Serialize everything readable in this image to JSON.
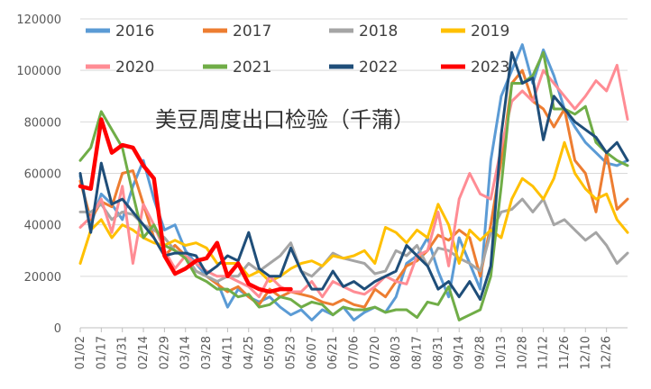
{
  "chart_data": {
    "type": "line",
    "title": "美豆周度出口检验（千蒲）",
    "xlabel": "",
    "ylabel": "",
    "ylim": [
      0,
      120000
    ],
    "yticks": [
      0,
      20000,
      40000,
      60000,
      80000,
      100000,
      120000
    ],
    "yticks_display": [
      "0",
      "20000",
      "40000",
      "60000",
      "80000",
      "100000",
      "120000"
    ],
    "x_tick_labels": [
      "01/02",
      "01/17",
      "01/31",
      "02/14",
      "02/29",
      "03/14",
      "03/28",
      "04/11",
      "04/25",
      "05/09",
      "05/23",
      "06/07",
      "06/21",
      "07/06",
      "07/20",
      "08/03",
      "08/17",
      "08/31",
      "09/14",
      "09/28",
      "10/13",
      "10/28",
      "11/12",
      "11/26",
      "12/10",
      "12/26"
    ],
    "x_tick_weeks": [
      0,
      2,
      4,
      6,
      8,
      10,
      12,
      14,
      16,
      18,
      20,
      22,
      24,
      26,
      28,
      30,
      32,
      34,
      36,
      38,
      40,
      42,
      44,
      46,
      48,
      50
    ],
    "week_count": 53,
    "grid": "horizontal",
    "legend_position": "top",
    "series": [
      {
        "name": "2016",
        "color": "#5B9BD5",
        "values": [
          59000,
          40000,
          52000,
          48000,
          42000,
          55000,
          65000,
          50000,
          38000,
          40000,
          30000,
          25000,
          20000,
          18000,
          8000,
          15000,
          12000,
          10000,
          12000,
          8000,
          5000,
          7000,
          3000,
          7000,
          5000,
          8000,
          3000,
          6000,
          8000,
          6000,
          12000,
          25000,
          28000,
          35000,
          22000,
          12000,
          35000,
          25000,
          15000,
          65000,
          90000,
          100000,
          110000,
          95000,
          108000,
          98000,
          85000,
          78000,
          72000,
          68000,
          64000,
          63000,
          65000
        ]
      },
      {
        "name": "2017",
        "color": "#ED7D31",
        "values": [
          57000,
          42000,
          49000,
          47000,
          60000,
          61000,
          48000,
          35000,
          28000,
          32000,
          28000,
          22000,
          20000,
          17000,
          14000,
          16000,
          12000,
          9000,
          15000,
          12000,
          14000,
          13000,
          12000,
          10000,
          9000,
          11000,
          9000,
          8000,
          15000,
          12000,
          18000,
          24000,
          26000,
          30000,
          36000,
          34000,
          38000,
          35000,
          20000,
          40000,
          65000,
          95000,
          100000,
          88000,
          85000,
          78000,
          85000,
          65000,
          60000,
          45000,
          68000,
          46000,
          50000
        ]
      },
      {
        "name": "2018",
        "color": "#A5A5A5",
        "values": [
          45000,
          45000,
          48000,
          42000,
          45000,
          44000,
          40000,
          38000,
          35000,
          30000,
          28000,
          22000,
          20000,
          18000,
          20000,
          20000,
          25000,
          22000,
          25000,
          28000,
          33000,
          22000,
          20000,
          24000,
          29000,
          27000,
          26000,
          25000,
          21000,
          22000,
          30000,
          28000,
          32000,
          24000,
          31000,
          30000,
          27000,
          25000,
          22000,
          37000,
          45000,
          46000,
          50000,
          45000,
          50000,
          40000,
          42000,
          38000,
          34000,
          37000,
          32000,
          25000,
          29000
        ]
      },
      {
        "name": "2019",
        "color": "#FFC000",
        "values": [
          25000,
          38000,
          42000,
          35000,
          40000,
          38000,
          35000,
          33000,
          32000,
          34000,
          32000,
          33000,
          31000,
          25000,
          25000,
          25000,
          20000,
          22000,
          18000,
          20000,
          23000,
          25000,
          26000,
          24000,
          28000,
          27000,
          28000,
          30000,
          25000,
          39000,
          37000,
          33000,
          38000,
          35000,
          48000,
          40000,
          25000,
          38000,
          34000,
          38000,
          35000,
          50000,
          58000,
          55000,
          50000,
          58000,
          72000,
          60000,
          54000,
          50000,
          52000,
          42000,
          37000
        ]
      },
      {
        "name": "2020",
        "color": "#FF8C94",
        "values": [
          39000,
          43000,
          50000,
          37000,
          55000,
          25000,
          48000,
          40000,
          30000,
          23000,
          28000,
          25000,
          22000,
          20000,
          20000,
          18000,
          16000,
          12000,
          20000,
          16000,
          14000,
          14000,
          18000,
          12000,
          18000,
          16000,
          14000,
          13000,
          16000,
          20000,
          18000,
          17000,
          28000,
          30000,
          45000,
          24000,
          50000,
          60000,
          52000,
          50000,
          70000,
          88000,
          92000,
          88000,
          100000,
          95000,
          90000,
          85000,
          90000,
          96000,
          92000,
          102000,
          81000
        ]
      },
      {
        "name": "2021",
        "color": "#70AD47",
        "values": [
          65000,
          70000,
          84000,
          77000,
          70000,
          52000,
          35000,
          40000,
          32000,
          30000,
          27000,
          20000,
          18000,
          15000,
          15000,
          12000,
          13000,
          8000,
          9000,
          12000,
          11000,
          8000,
          10000,
          9000,
          5000,
          8000,
          7000,
          7000,
          8000,
          6000,
          7000,
          7000,
          4000,
          10000,
          9000,
          16000,
          3000,
          5000,
          7000,
          20000,
          55000,
          95000,
          95000,
          98000,
          107000,
          85000,
          85000,
          83000,
          86000,
          72000,
          68000,
          65000,
          63000
        ]
      },
      {
        "name": "2022",
        "color": "#1F4E79",
        "values": [
          60000,
          37000,
          64000,
          48000,
          50000,
          45000,
          40000,
          35000,
          28000,
          29000,
          29000,
          28000,
          21000,
          24000,
          28000,
          26000,
          37000,
          23000,
          20000,
          20000,
          31000,
          22000,
          15000,
          15000,
          22000,
          16000,
          18000,
          15000,
          18000,
          20000,
          22000,
          32000,
          28000,
          24000,
          15000,
          18000,
          12000,
          18000,
          11000,
          24000,
          75000,
          107000,
          95000,
          97000,
          73000,
          90000,
          85000,
          80000,
          77000,
          74000,
          68000,
          72000,
          65000
        ]
      },
      {
        "name": "2023",
        "color": "#FF0000",
        "values": [
          55000,
          54000,
          81000,
          68000,
          71000,
          70000,
          63000,
          58000,
          28000,
          21000,
          23000,
          26000,
          27000,
          33000,
          20000,
          25000,
          17000,
          15000,
          14000,
          15000,
          15000
        ]
      }
    ]
  }
}
